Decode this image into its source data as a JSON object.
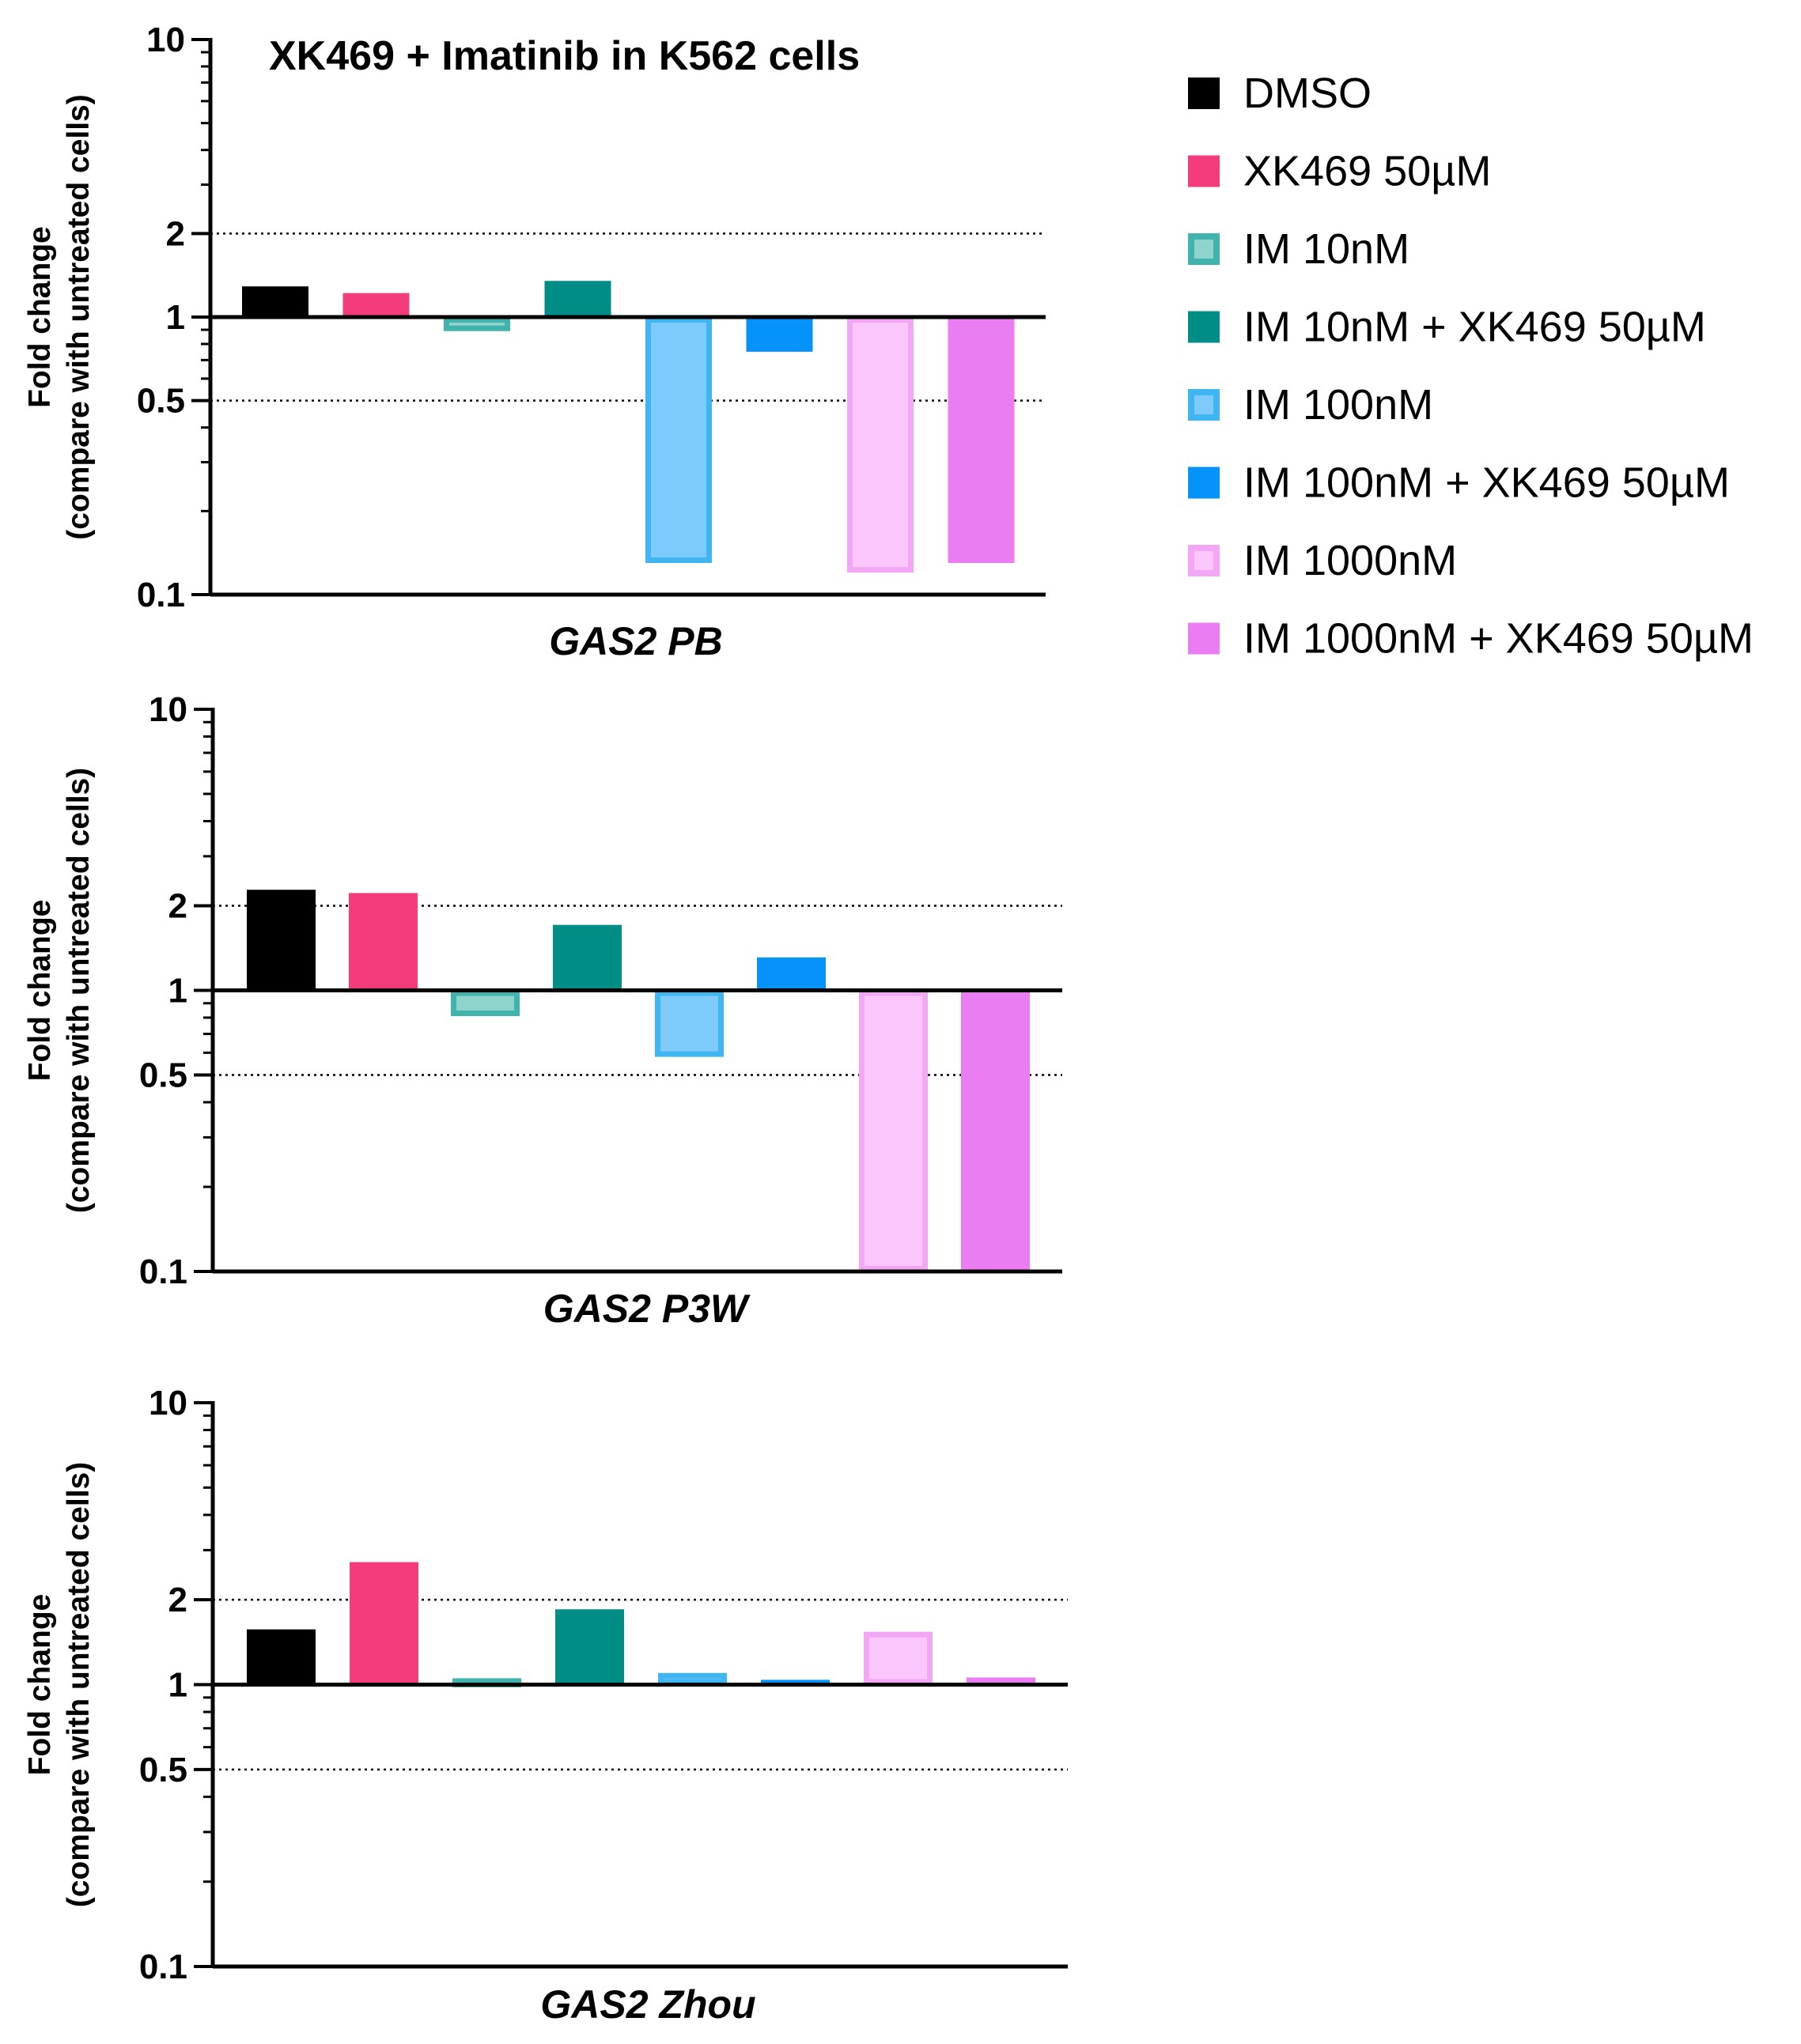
{
  "chart_data": [
    {
      "type": "bar",
      "title": "XK469 + Imatinib in K562 cells",
      "xlabel": "GAS2 PB",
      "ylabel": "Fold change",
      "ylabel2": "(compare with untreated cells)",
      "yscale": "log",
      "ylim": [
        0.1,
        10
      ],
      "yticks": [
        "10",
        "2",
        "1",
        "0.5",
        "0.1"
      ],
      "baseline": 1,
      "gridlines": [
        2,
        0.5
      ],
      "categories": [
        "DMSO",
        "XK469 50µM",
        "IM 10nM",
        "IM 10nM + XK469 50µM",
        "IM 100nM",
        "IM 100nM + XK469 50µM",
        "IM 1000nM",
        "IM 1000nM + XK469 50µM"
      ],
      "values": [
        1.29,
        1.22,
        0.89,
        1.35,
        0.13,
        0.75,
        0.12,
        0.13
      ]
    },
    {
      "type": "bar",
      "title": "",
      "xlabel": "GAS2 P3W",
      "ylabel": "Fold change",
      "ylabel2": "(compare with untreated cells)",
      "yscale": "log",
      "ylim": [
        0.1,
        10
      ],
      "yticks": [
        "10",
        "2",
        "1",
        "0.5",
        "0.1"
      ],
      "baseline": 1,
      "gridlines": [
        2,
        0.5
      ],
      "categories": [
        "DMSO",
        "XK469 50µM",
        "IM 10nM",
        "IM 10nM + XK469 50µM",
        "IM 100nM",
        "IM 100nM + XK469 50µM",
        "IM 1000nM",
        "IM 1000nM + XK469 50µM"
      ],
      "values": [
        2.28,
        2.22,
        0.81,
        1.71,
        0.58,
        1.31,
        0.1,
        0.1
      ]
    },
    {
      "type": "bar",
      "title": "",
      "xlabel": "GAS2 Zhou",
      "ylabel": "Fold change",
      "ylabel2": "(compare with untreated cells)",
      "yscale": "log",
      "ylim": [
        0.1,
        10
      ],
      "yticks": [
        "10",
        "2",
        "1",
        "0.5",
        "0.1"
      ],
      "baseline": 1,
      "gridlines": [
        2,
        0.5
      ],
      "categories": [
        "DMSO",
        "XK469 50µM",
        "IM 10nM",
        "IM 10nM + XK469 50µM",
        "IM 100nM",
        "IM 100nM + XK469 50µM",
        "IM 1000nM",
        "IM 1000nM + XK469 50µM"
      ],
      "values": [
        1.57,
        2.72,
        1.03,
        1.85,
        1.1,
        1.04,
        1.54,
        1.06
      ]
    }
  ],
  "legend": {
    "placement": "top-right",
    "items": [
      {
        "label": "DMSO",
        "color": "#000000",
        "style": "solid"
      },
      {
        "label": "XK469 50µM",
        "color": "#f43b7c",
        "style": "solid"
      },
      {
        "label": "IM 10nM",
        "color": "#3fb3ac",
        "style": "outlined"
      },
      {
        "label": "IM 10nM + XK469 50µM",
        "color": "#008d86",
        "style": "solid"
      },
      {
        "label": "IM 100nM",
        "color": "#3fb6f2",
        "style": "outlined"
      },
      {
        "label": "IM 100nM + XK469 50µM",
        "color": "#0592f9",
        "style": "solid"
      },
      {
        "label": "IM 1000nM",
        "color": "#f7b7f8",
        "style": "outlined"
      },
      {
        "label": "IM 1000nM + XK469 50µM",
        "color": "#eb7df2",
        "style": "solid"
      }
    ]
  },
  "bar_styles": [
    {
      "fill": "#000000",
      "stroke": "none"
    },
    {
      "fill": "#f43b7c",
      "stroke": "none"
    },
    {
      "fill": "#8fd3cd",
      "stroke": "#3fb3ac"
    },
    {
      "fill": "#008d86",
      "stroke": "none"
    },
    {
      "fill": "#7ccbfb",
      "stroke": "#3fb6f2"
    },
    {
      "fill": "#0592f9",
      "stroke": "none"
    },
    {
      "fill": "#fbc6fb",
      "stroke": "#f3a6f4"
    },
    {
      "fill": "#eb7df2",
      "stroke": "none"
    }
  ]
}
